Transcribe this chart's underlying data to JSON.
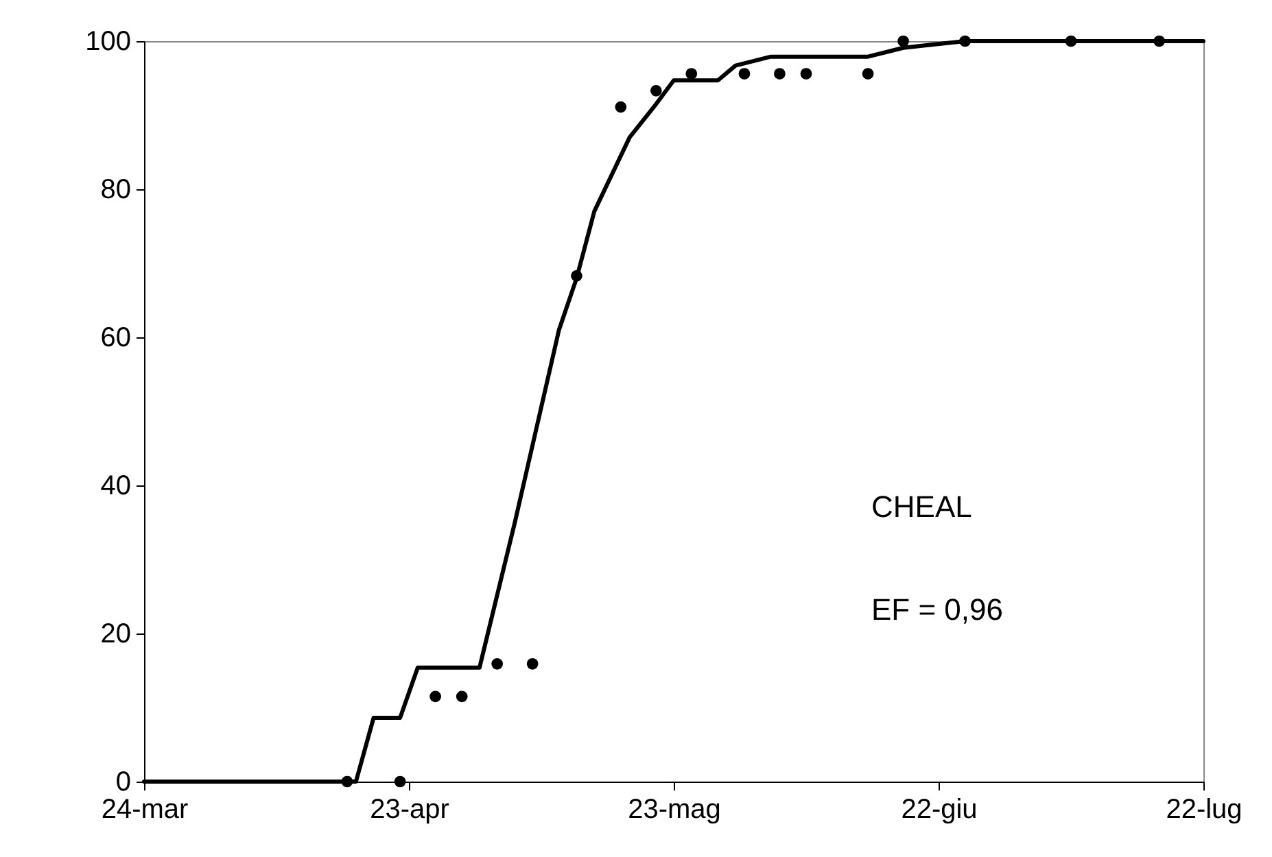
{
  "chart_data": {
    "type": "scatter",
    "annotations": [
      "CHEAL",
      "EF = 0,96"
    ],
    "xlim": [
      "--03-24",
      "--07-22"
    ],
    "xticks": [
      {
        "value": "--03-24",
        "label": "24-mar"
      },
      {
        "value": "--04-23",
        "label": "23-apr"
      },
      {
        "value": "--05-23",
        "label": "23-mag"
      },
      {
        "value": "--06-22",
        "label": "22-giu"
      },
      {
        "value": "--07-22",
        "label": "22-lug"
      }
    ],
    "ylim": [
      0,
      100
    ],
    "yticks": [
      0,
      20,
      40,
      60,
      80,
      100
    ],
    "line_style": "solid",
    "series": [
      {
        "type": "line",
        "marker": "none",
        "color": "#000000",
        "x": [
          "--03-24",
          "--04-17",
          "--04-19",
          "--04-22",
          "--04-24",
          "--05-01",
          "--05-05",
          "--05-10",
          "--05-12",
          "--05-14",
          "--05-18",
          "--05-21",
          "--05-23",
          "--05-28",
          "--05-30",
          "--06-03",
          "--06-14",
          "--06-18",
          "--06-21",
          "--06-25",
          "--07-22"
        ],
        "values": [
          0,
          0,
          8.6,
          8.6,
          15.4,
          15.4,
          35,
          61,
          68,
          77,
          87,
          91.5,
          94.7,
          94.7,
          96.7,
          97.9,
          97.9,
          99.1,
          99.5,
          100,
          100
        ]
      },
      {
        "type": "scatter",
        "marker": "circle",
        "color": "#000000",
        "x": [
          "--04-16",
          "--04-22",
          "--04-26",
          "--04-29",
          "--05-03",
          "--05-07",
          "--05-12",
          "--05-17",
          "--05-21",
          "--05-25",
          "--05-31",
          "--06-04",
          "--06-07",
          "--06-14",
          "--06-18",
          "--06-25",
          "--07-07",
          "--07-17"
        ],
        "values": [
          0,
          0,
          11.5,
          11.5,
          15.9,
          15.9,
          68.3,
          91.1,
          93.3,
          95.6,
          95.6,
          95.6,
          95.6,
          95.6,
          100,
          100,
          100,
          100
        ]
      }
    ]
  }
}
